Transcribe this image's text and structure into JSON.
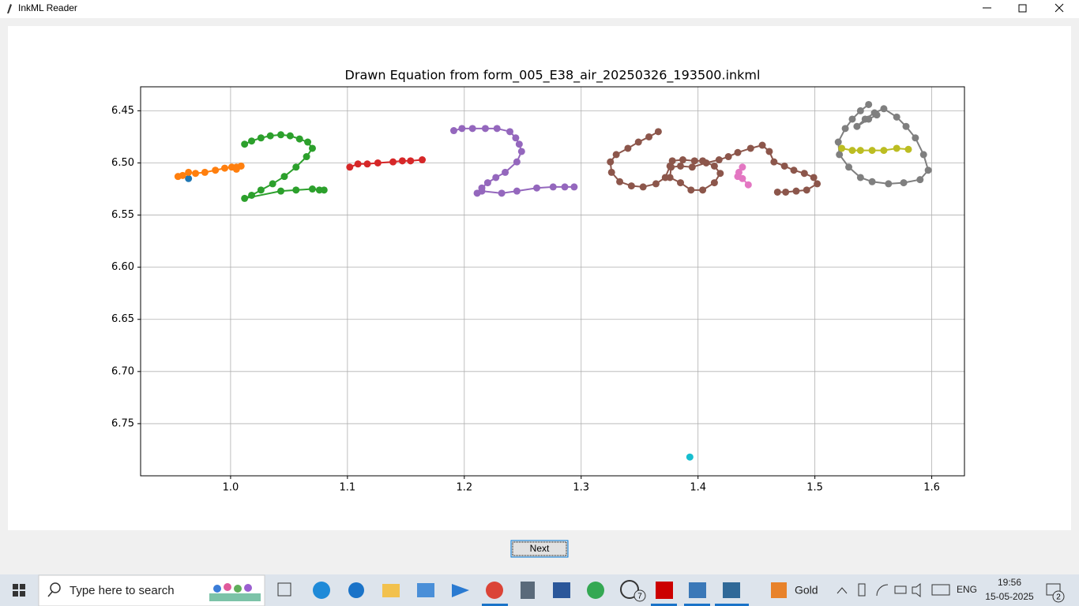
{
  "window": {
    "title": "InkML Reader",
    "button": "Next"
  },
  "taskbar": {
    "search": "Type here to search",
    "weather": "Gold",
    "language": "ENG",
    "time": "19:56",
    "date": "15-05-2025",
    "whatsapp_badge": "7",
    "notification_badge": "2"
  },
  "chart_data": {
    "type": "line",
    "title": "Drawn Equation from form_005_E38_air_20250326_193500.inkml",
    "xlim": [
      0.923,
      1.628
    ],
    "ylim": [
      6.8,
      6.427
    ],
    "grid": true,
    "xticks": [
      {
        "value": 1,
        "label": "1.0"
      },
      1.1,
      1.2,
      1.3,
      1.4,
      1.5,
      1.6
    ],
    "yticks": [
      6.45,
      {
        "value": 6.5,
        "label": "6.50"
      },
      6.55,
      {
        "value": 6.6,
        "label": "6.60"
      },
      6.65,
      {
        "value": 6.7,
        "label": "6.70"
      },
      6.75
    ],
    "series": [
      {
        "color": "#1f77b4",
        "x": [
          0.964
        ],
        "values": [
          6.515
        ]
      },
      {
        "color": "#ff7f0e",
        "x": [
          0.955,
          0.959,
          0.964,
          0.97,
          0.978,
          0.987,
          0.995,
          1.001,
          1.005,
          1.009,
          1.005
        ],
        "values": [
          6.513,
          6.512,
          6.509,
          6.51,
          6.509,
          6.507,
          6.505,
          6.504,
          6.504,
          6.503,
          6.506
        ]
      },
      {
        "color": "#2ca02c",
        "x": [
          1.012,
          1.018,
          1.026,
          1.034,
          1.043,
          1.051,
          1.059,
          1.066,
          1.07,
          1.065,
          1.056,
          1.046,
          1.036,
          1.026,
          1.018,
          1.012,
          1.043,
          1.056,
          1.07,
          1.076,
          1.08
        ],
        "values": [
          6.482,
          6.479,
          6.476,
          6.474,
          6.473,
          6.474,
          6.477,
          6.48,
          6.486,
          6.494,
          6.504,
          6.513,
          6.52,
          6.526,
          6.531,
          6.534,
          6.527,
          6.526,
          6.525,
          6.526,
          6.526
        ]
      },
      {
        "color": "#d62728",
        "x": [
          1.102,
          1.109,
          1.117,
          1.126,
          1.139,
          1.147,
          1.154,
          1.164
        ],
        "values": [
          6.504,
          6.501,
          6.501,
          6.5,
          6.499,
          6.498,
          6.498,
          6.497
        ]
      },
      {
        "color": "#9467bd",
        "x": [
          1.191,
          1.198,
          1.207,
          1.218,
          1.228,
          1.239,
          1.244,
          1.247,
          1.249,
          1.245,
          1.235,
          1.227,
          1.22,
          1.215,
          1.211,
          1.215,
          1.232,
          1.245,
          1.262,
          1.276,
          1.286,
          1.294
        ],
        "values": [
          6.469,
          6.467,
          6.467,
          6.467,
          6.467,
          6.47,
          6.476,
          6.482,
          6.489,
          6.499,
          6.509,
          6.514,
          6.519,
          6.524,
          6.529,
          6.527,
          6.529,
          6.527,
          6.524,
          6.523,
          6.523,
          6.523
        ]
      },
      {
        "color": "#8c564b",
        "x": [
          1.366,
          1.358,
          1.349,
          1.34,
          1.33,
          1.325,
          1.326,
          1.333,
          1.343,
          1.353,
          1.364,
          1.372,
          1.376,
          1.378,
          1.387,
          1.397,
          1.404,
          1.414,
          1.419,
          1.414,
          1.404,
          1.394,
          1.385,
          1.376,
          1.377,
          1.385,
          1.395,
          1.407,
          1.418,
          1.426,
          1.434,
          1.445,
          1.455,
          1.461,
          1.465,
          1.474,
          1.482,
          1.491,
          1.499,
          1.502,
          1.493,
          1.484,
          1.475,
          1.468
        ],
        "values": [
          6.47,
          6.475,
          6.48,
          6.486,
          6.492,
          6.499,
          6.509,
          6.518,
          6.522,
          6.523,
          6.52,
          6.514,
          6.503,
          6.498,
          6.497,
          6.498,
          6.498,
          6.503,
          6.51,
          6.519,
          6.526,
          6.526,
          6.519,
          6.514,
          6.504,
          6.503,
          6.504,
          6.5,
          6.497,
          6.494,
          6.49,
          6.486,
          6.483,
          6.489,
          6.499,
          6.503,
          6.507,
          6.51,
          6.514,
          6.52,
          6.526,
          6.527,
          6.528,
          6.528
        ]
      },
      {
        "color": "#e377c2",
        "x": [
          1.438,
          1.435,
          1.434,
          1.438,
          1.443
        ],
        "values": [
          6.504,
          6.509,
          6.513,
          6.515,
          6.521
        ]
      },
      {
        "color": "#7f7f7f",
        "x": [
          1.546,
          1.539,
          1.532,
          1.526,
          1.52,
          1.521,
          1.529,
          1.539,
          1.549,
          1.563,
          1.576,
          1.59,
          1.597,
          1.593,
          1.586,
          1.578,
          1.57,
          1.559,
          1.551,
          1.543,
          1.536,
          1.546,
          1.553
        ],
        "values": [
          6.444,
          6.45,
          6.458,
          6.467,
          6.48,
          6.492,
          6.504,
          6.514,
          6.518,
          6.52,
          6.519,
          6.516,
          6.507,
          6.492,
          6.476,
          6.465,
          6.456,
          6.448,
          6.452,
          6.458,
          6.465,
          6.458,
          6.454
        ]
      },
      {
        "color": "#bcbd22",
        "x": [
          1.523,
          1.532,
          1.539,
          1.549,
          1.559,
          1.57,
          1.58
        ],
        "values": [
          6.486,
          6.488,
          6.488,
          6.488,
          6.488,
          6.486,
          6.487
        ]
      },
      {
        "color": "#17becf",
        "x": [
          1.393
        ],
        "values": [
          6.782
        ]
      }
    ]
  }
}
